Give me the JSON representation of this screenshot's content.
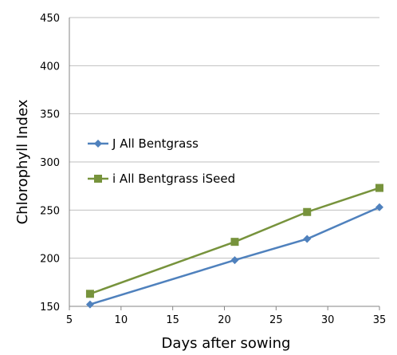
{
  "chart_data": {
    "type": "line",
    "title": "",
    "xlabel": "Days after sowing",
    "ylabel": "Chlorophyll Index",
    "xlim": [
      5,
      35
    ],
    "ylim": [
      150,
      450
    ],
    "xticks": [
      "5",
      "10",
      "15",
      "20",
      "25",
      "30",
      "35"
    ],
    "yticks": [
      "150",
      "200",
      "250",
      "300",
      "350",
      "400",
      "450"
    ],
    "grid": "horizontal",
    "legend_position": "left-middle",
    "series": [
      {
        "name": "J All Bentgrass",
        "color": "#4F81BD",
        "marker": "diamond",
        "x": [
          7,
          21,
          28,
          35
        ],
        "y": [
          152,
          198,
          220,
          253
        ]
      },
      {
        "name": "i All Bentgrass iSeed",
        "color": "#77933C",
        "marker": "square",
        "x": [
          7,
          21,
          28,
          35
        ],
        "y": [
          163,
          217,
          248,
          273
        ]
      }
    ]
  }
}
